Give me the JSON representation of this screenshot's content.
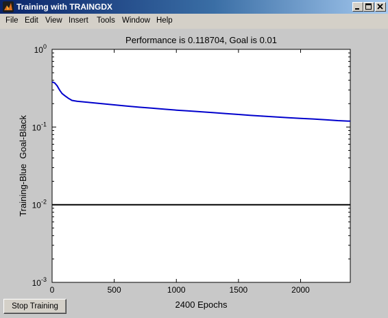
{
  "window": {
    "title": "Training with TRAINGDX",
    "controls": {
      "minimize": "minimize-icon",
      "maximize": "maximize-icon",
      "close": "close-icon"
    }
  },
  "menu": {
    "items": [
      "File",
      "Edit",
      "View",
      "Insert",
      "Tools",
      "Window",
      "Help"
    ]
  },
  "stop_button": {
    "label": "Stop Training"
  },
  "colors": {
    "training": "#0000cc",
    "goal": "#000000",
    "titlebar": "#0a246a",
    "background": "#c8c8c8"
  },
  "chart_data": {
    "type": "line",
    "title": "Performance is 0.118704, Goal is 0.01",
    "xlabel": "2400 Epochs",
    "ylabel": "Training-Blue  Goal-Black",
    "xlim": [
      0,
      2400
    ],
    "ylim": [
      0.001,
      1
    ],
    "yscale": "log",
    "grid": false,
    "x_ticks": [
      "0",
      "500",
      "1000",
      "1500",
      "2000"
    ],
    "y_ticks": [
      {
        "base": "10",
        "exp": "0"
      },
      {
        "base": "10",
        "exp": "-1"
      },
      {
        "base": "10",
        "exp": "-2"
      },
      {
        "base": "10",
        "exp": "-3"
      }
    ],
    "series": [
      {
        "color": "#0000cc",
        "x": [
          0,
          20,
          40,
          60,
          80,
          100,
          130,
          160,
          200,
          300,
          400,
          500,
          600,
          700,
          800,
          900,
          1000,
          1100,
          1200,
          1300,
          1400,
          1500,
          1600,
          1700,
          1800,
          1900,
          2000,
          2100,
          2200,
          2300,
          2400
        ],
        "y": [
          0.38,
          0.37,
          0.34,
          0.3,
          0.27,
          0.255,
          0.235,
          0.22,
          0.215,
          0.207,
          0.2,
          0.193,
          0.186,
          0.18,
          0.175,
          0.17,
          0.165,
          0.161,
          0.157,
          0.153,
          0.149,
          0.145,
          0.141,
          0.138,
          0.135,
          0.132,
          0.129,
          0.127,
          0.124,
          0.121,
          0.119
        ]
      },
      {
        "color": "#000000",
        "x": [
          0,
          2400
        ],
        "y": [
          0.01,
          0.01
        ]
      }
    ]
  }
}
